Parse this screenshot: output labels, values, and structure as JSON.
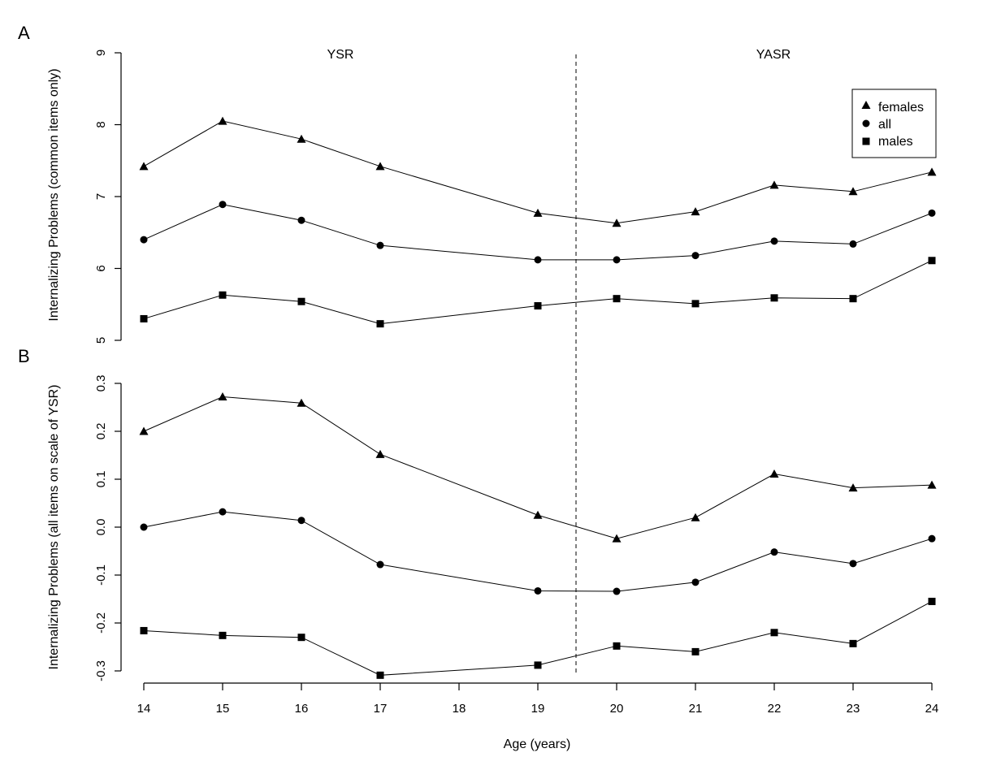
{
  "chart_data": [
    {
      "panel": "A",
      "type": "line",
      "x": [
        14,
        15,
        16,
        17,
        19,
        20,
        21,
        22,
        23,
        24
      ],
      "xticks": [
        "14",
        "15",
        "16",
        "17",
        "18",
        "19",
        "20",
        "21",
        "22",
        "23",
        "24"
      ],
      "ylabel": "Internalizing Problems (common items only)",
      "ylim": [
        5,
        9
      ],
      "yticks": [
        "5",
        "6",
        "7",
        "8",
        "9"
      ],
      "region_labels": [
        "YSR",
        "YASR"
      ],
      "divider_x": 19.5,
      "legend": {
        "placement": "top-right",
        "entries": [
          "females",
          "all",
          "males"
        ]
      },
      "series": [
        {
          "name": "females",
          "marker": "triangle",
          "values": [
            7.42,
            8.05,
            7.8,
            7.42,
            6.77,
            6.63,
            6.79,
            7.16,
            7.07,
            7.34
          ]
        },
        {
          "name": "all",
          "marker": "circle",
          "values": [
            6.4,
            6.89,
            6.67,
            6.32,
            6.12,
            6.12,
            6.18,
            6.38,
            6.34,
            6.77
          ]
        },
        {
          "name": "males",
          "marker": "square",
          "values": [
            5.3,
            5.63,
            5.54,
            5.23,
            5.48,
            5.58,
            5.51,
            5.59,
            5.58,
            6.11
          ]
        }
      ]
    },
    {
      "panel": "B",
      "type": "line",
      "x": [
        14,
        15,
        16,
        17,
        19,
        20,
        21,
        22,
        23,
        24
      ],
      "xticks": [
        "14",
        "15",
        "16",
        "17",
        "18",
        "19",
        "20",
        "21",
        "22",
        "23",
        "24"
      ],
      "xlabel": "Age (years)",
      "ylabel": "Internalizing Problems (all items on scale of YSR)",
      "ylim": [
        -0.3,
        0.3
      ],
      "yticks": [
        "-0.3",
        "-0.2",
        "-0.1",
        "0.0",
        "0.1",
        "0.2",
        "0.3"
      ],
      "divider_x": 19.5,
      "series": [
        {
          "name": "females",
          "marker": "triangle",
          "values": [
            0.2,
            0.272,
            0.259,
            0.152,
            0.025,
            -0.024,
            0.02,
            0.111,
            0.082,
            0.088
          ]
        },
        {
          "name": "all",
          "marker": "circle",
          "values": [
            0.0,
            0.032,
            0.014,
            -0.078,
            -0.133,
            -0.134,
            -0.115,
            -0.052,
            -0.076,
            -0.024
          ]
        },
        {
          "name": "males",
          "marker": "square",
          "values": [
            -0.216,
            -0.226,
            -0.23,
            -0.309,
            -0.288,
            -0.248,
            -0.26,
            -0.22,
            -0.243,
            -0.155
          ]
        }
      ]
    }
  ]
}
